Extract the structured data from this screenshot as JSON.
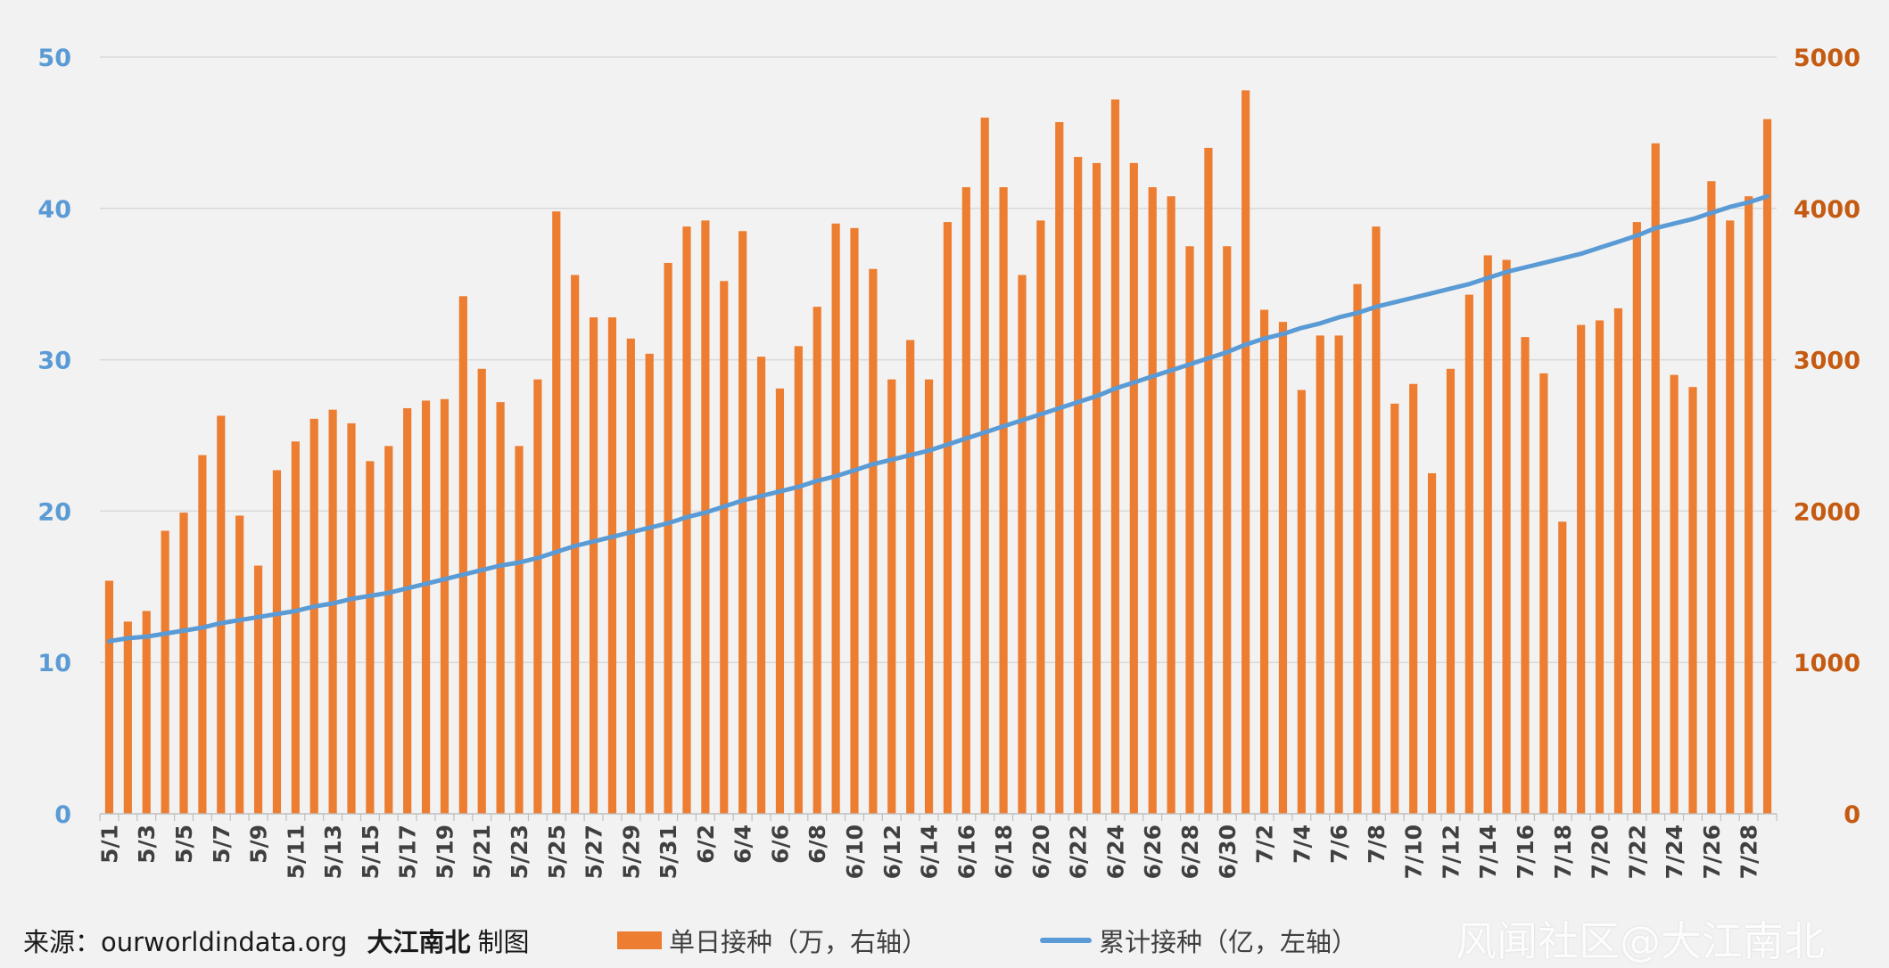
{
  "chart_data": {
    "type": "bar+line",
    "categories": [
      "5/1",
      "5/2",
      "5/3",
      "5/4",
      "5/5",
      "5/6",
      "5/7",
      "5/8",
      "5/9",
      "5/10",
      "5/11",
      "5/12",
      "5/13",
      "5/14",
      "5/15",
      "5/16",
      "5/17",
      "5/18",
      "5/19",
      "5/20",
      "5/21",
      "5/22",
      "5/23",
      "5/24",
      "5/25",
      "5/26",
      "5/27",
      "5/28",
      "5/29",
      "5/30",
      "5/31",
      "6/1",
      "6/2",
      "6/3",
      "6/4",
      "6/5",
      "6/6",
      "6/7",
      "6/8",
      "6/9",
      "6/10",
      "6/11",
      "6/12",
      "6/13",
      "6/14",
      "6/15",
      "6/16",
      "6/17",
      "6/18",
      "6/19",
      "6/20",
      "6/21",
      "6/22",
      "6/23",
      "6/24",
      "6/25",
      "6/26",
      "6/27",
      "6/28",
      "6/29",
      "6/30",
      "7/1",
      "7/2",
      "7/3",
      "7/4",
      "7/5",
      "7/6",
      "7/7",
      "7/8",
      "7/9",
      "7/10",
      "7/11",
      "7/12",
      "7/13",
      "7/14",
      "7/15",
      "7/16",
      "7/17",
      "7/18",
      "7/19",
      "7/20",
      "7/21",
      "7/22",
      "7/23",
      "7/24",
      "7/25",
      "7/26",
      "7/27",
      "7/28",
      "7/29"
    ],
    "xtick_labels_shown": [
      "5/1",
      "5/3",
      "5/5",
      "5/7",
      "5/9",
      "5/11",
      "5/13",
      "5/15",
      "5/17",
      "5/19",
      "5/21",
      "5/23",
      "5/25",
      "5/27",
      "5/29",
      "5/31",
      "6/2",
      "6/4",
      "6/6",
      "6/8",
      "6/10",
      "6/12",
      "6/14",
      "6/16",
      "6/18",
      "6/20",
      "6/22",
      "6/24",
      "6/26",
      "6/28",
      "6/30",
      "7/2",
      "7/4",
      "7/6",
      "7/8",
      "7/10",
      "7/12",
      "7/14",
      "7/16",
      "7/18",
      "7/20",
      "7/22",
      "7/24",
      "7/26",
      "7/28"
    ],
    "series": [
      {
        "name": "单日接种（万，右轴）",
        "type": "bar",
        "axis": "right",
        "color": "#ed7d31",
        "values": [
          1540,
          1270,
          1340,
          1870,
          1990,
          2370,
          2630,
          1970,
          1640,
          2270,
          2460,
          2610,
          2670,
          2580,
          2330,
          2430,
          2680,
          2730,
          2740,
          3420,
          2940,
          2720,
          2430,
          2870,
          3980,
          3560,
          3280,
          3280,
          3140,
          3040,
          3640,
          3880,
          3920,
          3520,
          3850,
          3020,
          2810,
          3090,
          3350,
          3900,
          3870,
          3600,
          2870,
          3130,
          2870,
          3910,
          4140,
          4600,
          4140,
          3560,
          3920,
          4570,
          4340,
          4300,
          4720,
          4300,
          4140,
          4080,
          3750,
          4400,
          3750,
          4780,
          3330,
          3250,
          2800,
          3160,
          3160,
          3500,
          3880,
          2710,
          2840,
          2250,
          2940,
          3430,
          3690,
          3660,
          3150,
          2910,
          1930,
          3230,
          3260,
          3340,
          3910,
          4430,
          2900,
          2820,
          4180,
          3920,
          4080,
          4590
        ]
      },
      {
        "name": "累计接种（亿，左轴）",
        "type": "line",
        "axis": "left",
        "color": "#5b9bd5",
        "values": [
          11.4,
          11.6,
          11.7,
          11.9,
          12.1,
          12.3,
          12.6,
          12.8,
          13.0,
          13.2,
          13.4,
          13.7,
          13.9,
          14.2,
          14.4,
          14.6,
          14.9,
          15.2,
          15.5,
          15.8,
          16.1,
          16.4,
          16.6,
          16.9,
          17.3,
          17.7,
          18.0,
          18.3,
          18.6,
          18.9,
          19.2,
          19.6,
          19.9,
          20.3,
          20.7,
          21.0,
          21.3,
          21.6,
          22.0,
          22.3,
          22.7,
          23.1,
          23.4,
          23.7,
          24.0,
          24.4,
          24.8,
          25.2,
          25.6,
          26.0,
          26.4,
          26.8,
          27.2,
          27.6,
          28.1,
          28.5,
          28.9,
          29.3,
          29.7,
          30.1,
          30.5,
          31.0,
          31.4,
          31.7,
          32.1,
          32.4,
          32.8,
          33.1,
          33.5,
          33.8,
          34.1,
          34.4,
          34.7,
          35.0,
          35.4,
          35.8,
          36.1,
          36.4,
          36.7,
          37.0,
          37.4,
          37.8,
          38.2,
          38.7,
          39.0,
          39.3,
          39.7,
          40.1,
          40.4,
          40.8
        ]
      }
    ],
    "y_left": {
      "range": [
        0,
        50
      ],
      "ticks": [
        "0",
        "10",
        "20",
        "30",
        "40",
        "50"
      ],
      "color": "#5b9bd5"
    },
    "y_right": {
      "range": [
        0,
        5000
      ],
      "ticks": [
        "0",
        "1000",
        "2000",
        "3000",
        "4000",
        "5000"
      ],
      "color": "#c55a11"
    },
    "grid": true,
    "legend_position": "bottom"
  },
  "footer": {
    "source_label": "来源：ourworldindata.org",
    "brand": "大江南北",
    "made": "制图"
  },
  "legend": {
    "bar_label": "单日接种（万，右轴）",
    "line_label": "累计接种（亿，左轴）"
  },
  "watermark": "风闻社区@大江南北",
  "colors": {
    "background": "#f2f2f2",
    "bar": "#ed7d31",
    "line": "#5b9bd5",
    "left_axis_text": "#5b9bd5",
    "right_axis_text": "#c55a11",
    "grid": "#d9d9d9"
  }
}
